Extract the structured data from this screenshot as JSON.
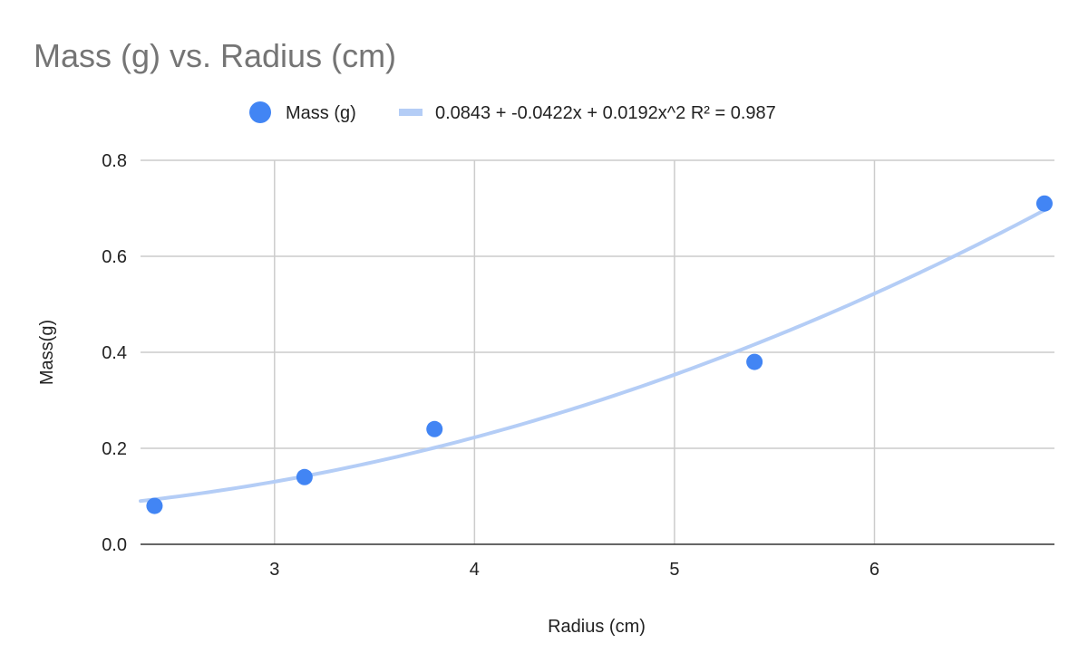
{
  "chart_data": {
    "type": "scatter",
    "title": "Mass (g) vs. Radius (cm)",
    "xlabel": "Radius (cm)",
    "ylabel": "Mass(g)",
    "xlim": [
      2.33,
      6.9
    ],
    "ylim": [
      0,
      0.8
    ],
    "x_ticks": [
      3,
      4,
      5,
      6
    ],
    "x_tick_labels": [
      "3",
      "4",
      "5",
      "6"
    ],
    "y_ticks": [
      0,
      0.2,
      0.4,
      0.6,
      0.8
    ],
    "y_tick_labels": [
      "0.0",
      "0.2",
      "0.4",
      "0.6",
      "0.8"
    ],
    "grid": true,
    "legend_position": "top",
    "series": [
      {
        "name": "Mass (g)",
        "color": "#4285f4",
        "x": [
          2.4,
          3.15,
          3.8,
          5.4,
          6.85
        ],
        "y": [
          0.08,
          0.14,
          0.24,
          0.38,
          0.71
        ]
      }
    ],
    "trendline": {
      "name": "0.0843 + -0.0422x + 0.0192x^2 R² = 0.987",
      "type": "polynomial",
      "coefficients": [
        0.0843,
        -0.0422,
        0.0192
      ],
      "color": "#b4cdf6"
    }
  }
}
